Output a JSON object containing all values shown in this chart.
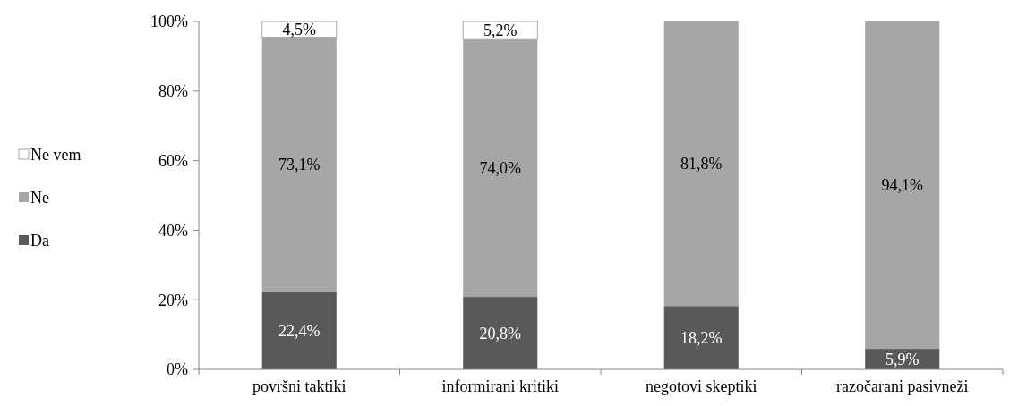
{
  "chart_data": {
    "type": "bar",
    "stacked": true,
    "categories": [
      "površni taktiki",
      "informirani kritiki",
      "negotovi skeptiki",
      "razočarani pasivneži"
    ],
    "series": [
      {
        "name": "Da",
        "color": "#595959",
        "values": [
          22.4,
          20.8,
          18.2,
          5.9
        ],
        "value_labels": [
          "22,4%",
          "20,8%",
          "18,2%",
          "5,9%"
        ]
      },
      {
        "name": "Ne",
        "color": "#a6a6a6",
        "values": [
          73.1,
          74.0,
          81.8,
          94.1
        ],
        "value_labels": [
          "73,1%",
          "74,0%",
          "81,8%",
          "94,1%"
        ]
      },
      {
        "name": "Ne vem",
        "color": "#ffffff",
        "values": [
          4.5,
          5.2,
          0,
          0
        ],
        "value_labels": [
          "4,5%",
          "5,2%",
          null,
          null
        ]
      }
    ],
    "ylim": [
      0,
      100
    ],
    "yticks": [
      {
        "value": 0,
        "label": "0%"
      },
      {
        "value": 20,
        "label": "20%"
      },
      {
        "value": 40,
        "label": "40%"
      },
      {
        "value": 60,
        "label": "60%"
      },
      {
        "value": 80,
        "label": "80%"
      },
      {
        "value": 100,
        "label": "100%"
      }
    ],
    "grid": false,
    "legend": "left"
  }
}
